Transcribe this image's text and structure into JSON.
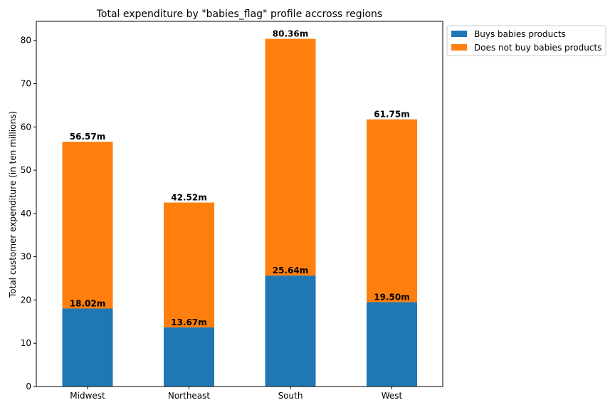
{
  "chart_data": {
    "type": "bar",
    "stacked": true,
    "title": "Total expenditure by \"babies_flag\" profile accross regions",
    "xlabel": "",
    "ylabel": "Total customer expenditure (in ten millions)",
    "categories": [
      "Midwest",
      "Northeast",
      "South",
      "West"
    ],
    "ylim": [
      0,
      84.4
    ],
    "yticks": [
      0,
      10,
      20,
      30,
      40,
      50,
      60,
      70,
      80
    ],
    "series": [
      {
        "name": "Buys babies products",
        "color": "#1f77b4",
        "values": [
          18.02,
          13.67,
          25.64,
          19.5
        ]
      },
      {
        "name": "Does not buy babies products",
        "color": "#ff7f0e",
        "values": [
          38.55,
          28.85,
          54.72,
          42.25
        ]
      }
    ],
    "segment_labels": [
      "18.02m",
      "13.67m",
      "25.64m",
      "19.50m"
    ],
    "total_labels": [
      "56.57m",
      "42.52m",
      "80.36m",
      "61.75m"
    ],
    "legend_position": "outside-upper-right",
    "grid": false
  }
}
